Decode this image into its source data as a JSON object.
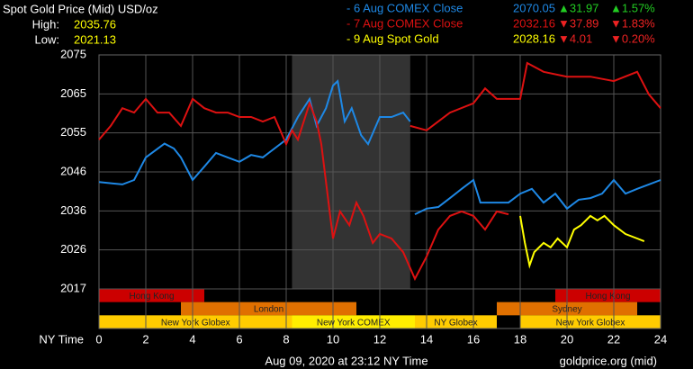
{
  "chart_data": {
    "type": "line",
    "title": "Spot Gold Price (Mid) USD/oz",
    "high_label": "High:",
    "high": 2035.76,
    "low_label": "Low:",
    "low": 2021.13,
    "x_label": "NY Time",
    "footer": "Aug 09, 2020 at 23:12 NY Time",
    "source": "goldprice.org (mid)",
    "xlim": [
      0,
      24
    ],
    "xticks": [
      0,
      2,
      4,
      6,
      8,
      10,
      12,
      14,
      16,
      18,
      20,
      22,
      24
    ],
    "ylim": [
      2017,
      2075
    ],
    "yticks": [
      2017,
      {
        "value": 2026.67,
        "label": "2026"
      },
      {
        "value": 2036.33,
        "label": "2036"
      },
      2046,
      {
        "value": 2055.67,
        "label": "2055"
      },
      {
        "value": 2065.33,
        "label": "2065"
      },
      2075
    ],
    "grid": true,
    "highlight": [
      8.25,
      13.3
    ],
    "series": [
      {
        "name": "- 6 Aug COMEX Close",
        "color": "#1e88e5",
        "close": 2070.05,
        "change": "▲31.97",
        "change_pct": "▲1.57%",
        "change_color": "#22cc22",
        "x": [
          0,
          1,
          1.5,
          2,
          2.8,
          3.2,
          3.5,
          4,
          4.5,
          5,
          5.5,
          6,
          6.5,
          7,
          7.5,
          8,
          8.5,
          9,
          9.3,
          9.7,
          10,
          10.2,
          10.5,
          10.8,
          11.2,
          11.5,
          12,
          12.5,
          13,
          13.3,
          null,
          13.5,
          14,
          14.5,
          15,
          15.5,
          16,
          16.3,
          17,
          17.5,
          18,
          18.5,
          19,
          19.5,
          20,
          20.5,
          21,
          21.5,
          22,
          22.5,
          23,
          23.5,
          24
        ],
        "values": [
          2043.5,
          2042.9,
          2044.0,
          2049.6,
          2053.0,
          2051.8,
          2049.6,
          2044.0,
          2047.3,
          2050.7,
          2049.6,
          2048.5,
          2050.2,
          2049.6,
          2051.8,
          2054.0,
          2059.6,
          2064.1,
          2057.4,
          2061.8,
          2067.4,
          2068.5,
          2058.5,
          2061.8,
          2055.1,
          2052.9,
          2059.6,
          2059.6,
          2060.7,
          2058.5,
          null,
          2035.5,
          2036.9,
          2037.3,
          2039.5,
          2041.8,
          2044.0,
          2038.4,
          2038.4,
          2038.4,
          2040.6,
          2041.8,
          2038.4,
          2040.6,
          2036.9,
          2039.1,
          2039.5,
          2040.6,
          2044.0,
          2040.6,
          2041.8,
          2042.9,
          2044.0
        ]
      },
      {
        "name": "- 7 Aug COMEX Close",
        "color": "#dd1111",
        "close": 2032.16,
        "change": "▼37.89",
        "change_pct": "▼1.83%",
        "change_color": "#ee2222",
        "x": [
          0,
          0.5,
          1,
          1.5,
          2,
          2.5,
          3,
          3.5,
          4,
          4.5,
          5,
          5.5,
          6,
          6.5,
          7,
          7.5,
          8,
          8.25,
          8.5,
          9,
          9.3,
          9.5,
          10,
          10.3,
          10.7,
          11,
          11.3,
          11.7,
          12,
          12.5,
          13,
          13.5,
          14,
          14.5,
          15,
          15.5,
          16,
          16.5,
          17,
          17.5,
          null,
          13.3,
          14,
          15,
          16,
          16.5,
          17,
          18,
          18.3,
          19,
          20,
          21,
          22,
          23,
          23.5,
          24
        ],
        "values": [
          2054.0,
          2057.4,
          2061.8,
          2060.7,
          2064.1,
          2060.7,
          2060.7,
          2057.4,
          2064.1,
          2061.8,
          2060.7,
          2060.7,
          2059.6,
          2059.6,
          2058.5,
          2059.6,
          2052.9,
          2056.3,
          2054.0,
          2063.0,
          2058.5,
          2052.9,
          2029.5,
          2036.2,
          2032.8,
          2038.4,
          2035.1,
          2028.4,
          2030.6,
          2029.5,
          2026.1,
          2019.5,
          2025.0,
          2031.7,
          2035.1,
          2036.2,
          2035.1,
          2031.7,
          2036.2,
          2035.5,
          null,
          2057.4,
          2056.3,
          2060.7,
          2063.0,
          2066.7,
          2064.1,
          2064.1,
          2073.0,
          2070.8,
          2069.6,
          2069.6,
          2068.5,
          2070.8,
          2065.2,
          2061.8
        ]
      },
      {
        "name": "- 9 Aug Spot Gold",
        "color": "#ffff00",
        "close": 2028.16,
        "change": "▼4.01",
        "change_pct": "▼0.20%",
        "change_color": "#ee2222",
        "x": [
          18,
          18.2,
          18.4,
          18.6,
          19,
          19.3,
          19.6,
          20,
          20.3,
          20.6,
          21,
          21.3,
          21.6,
          22,
          22.5,
          23,
          23.3
        ],
        "values": [
          2035.1,
          2028.4,
          2022.8,
          2026.1,
          2028.4,
          2027.3,
          2029.5,
          2027.3,
          2031.7,
          2032.8,
          2035.1,
          2034.0,
          2035.1,
          2032.8,
          2030.6,
          2029.5,
          2028.8
        ]
      }
    ],
    "sessions": [
      {
        "label": "Hong Kong",
        "start": 0,
        "end": 4.5,
        "row": 0,
        "color": "#cc0000"
      },
      {
        "label": "Hong Kong",
        "start": 19.5,
        "end": 24,
        "row": 0,
        "color": "#cc0000"
      },
      {
        "label": "London",
        "start": 3.5,
        "end": 11,
        "row": 1,
        "color": "#e07000"
      },
      {
        "label": "Sydney",
        "start": 17,
        "end": 23,
        "row": 1,
        "color": "#e07000"
      },
      {
        "label": "New York Globex",
        "start": 0,
        "end": 8.25,
        "row": 2,
        "color": "#ffcc00"
      },
      {
        "label": "New York COMEX",
        "start": 8.25,
        "end": 13.5,
        "row": 2,
        "color": "#ffee00"
      },
      {
        "label": "NY Globex",
        "start": 13.5,
        "end": 17,
        "row": 2,
        "color": "#ffcc00"
      },
      {
        "label": "New York Globex",
        "start": 18,
        "end": 24,
        "row": 2,
        "color": "#ffcc00"
      }
    ]
  }
}
